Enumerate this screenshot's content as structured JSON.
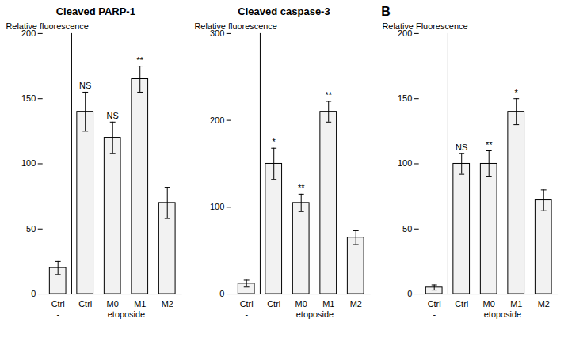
{
  "chart_data": [
    {
      "type": "bar",
      "title": "Cleaved PARP-1",
      "categories": [
        "Ctrl",
        "Ctrl",
        "M0",
        "M1",
        "M2"
      ],
      "values": [
        20,
        140,
        120,
        165,
        70
      ],
      "errors": [
        5,
        15,
        12,
        10,
        12
      ],
      "significance": [
        null,
        "NS",
        "NS",
        "**",
        null
      ],
      "group_labels": [
        "-",
        "etoposide"
      ],
      "ylabel": "Relative fluorescence",
      "ylim": [
        0,
        200
      ],
      "yticks": [
        0,
        50,
        100,
        150,
        200
      ],
      "color": "#f2f2f2",
      "grid": false
    },
    {
      "type": "bar",
      "title": "Cleaved caspase-3",
      "categories": [
        "Ctrl",
        "Ctrl",
        "M0",
        "M1",
        "M2"
      ],
      "values": [
        12,
        150,
        105,
        210,
        65
      ],
      "errors": [
        4,
        18,
        10,
        12,
        8
      ],
      "significance": [
        null,
        "*",
        "**",
        "**",
        null
      ],
      "group_labels": [
        "-",
        "etoposide"
      ],
      "ylabel": "Relative fluorescence",
      "ylim": [
        0,
        300
      ],
      "yticks": [
        0,
        100,
        200,
        300
      ],
      "color": "#f2f2f2",
      "grid": false
    },
    {
      "type": "bar",
      "annotations": [
        "B"
      ],
      "categories": [
        "Ctrl",
        "Ctrl",
        "M0",
        "M1",
        "M2"
      ],
      "values": [
        5,
        100,
        100,
        140,
        72
      ],
      "errors": [
        2,
        8,
        10,
        10,
        8
      ],
      "significance": [
        null,
        "NS",
        "**",
        "*",
        null
      ],
      "group_labels": [
        "-",
        "etoposide"
      ],
      "ylabel": "Relative Fluorescence",
      "ylim": [
        0,
        200
      ],
      "yticks": [
        0,
        50,
        100,
        150,
        200
      ],
      "color": "#f2f2f2",
      "grid": false
    }
  ]
}
